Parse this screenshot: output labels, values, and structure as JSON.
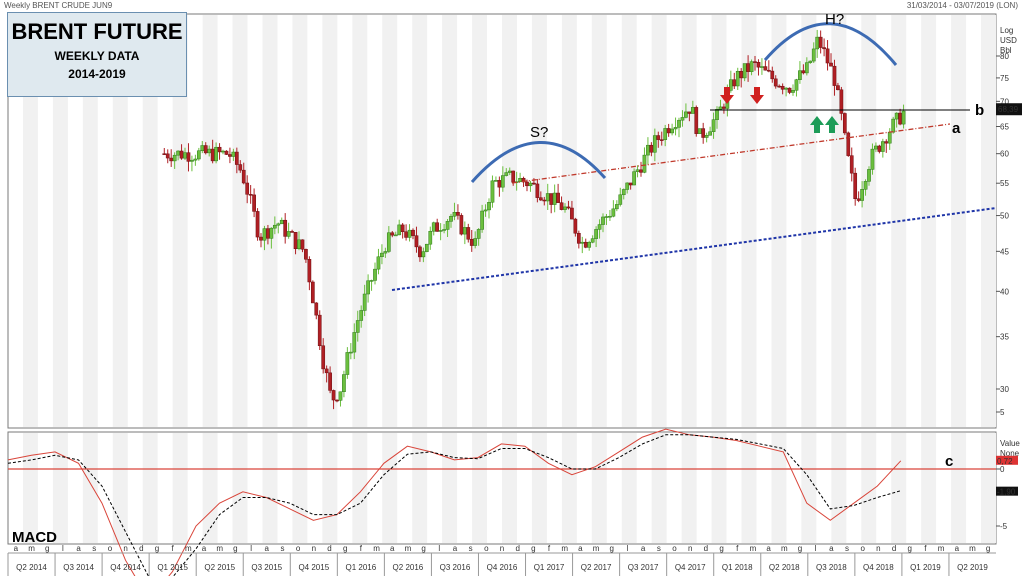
{
  "header": {
    "instrument": "Weekly BRENT CRUDE JUN9",
    "range": "31/03/2014 - 03/07/2019 (LON)"
  },
  "title_box": {
    "title": "BRENT FUTURE",
    "subtitle": "WEEKLY DATA",
    "period": "2014-2019"
  },
  "chart_data": [
    {
      "type": "candlestick",
      "title": "BRENT FUTURE",
      "subtitle": "WEEKLY DATA",
      "axis_header": [
        "Log",
        "USD",
        "Bbl"
      ],
      "yscale": "log",
      "ylim": [
        26,
        88
      ],
      "yticks": [
        30,
        35,
        40,
        45,
        50,
        55,
        60,
        65,
        70,
        75,
        80
      ],
      "last_price": 68.39,
      "last_price_label": "68,39",
      "months": [
        "a",
        "m",
        "g",
        "l",
        "a",
        "s",
        "o",
        "n",
        "d",
        "g",
        "f",
        "m",
        "a",
        "m",
        "g",
        "l",
        "a",
        "s",
        "o",
        "n",
        "d",
        "g",
        "f",
        "m",
        "a",
        "m",
        "g",
        "l",
        "a",
        "s",
        "o",
        "n",
        "d",
        "g",
        "f",
        "m",
        "a",
        "m",
        "g",
        "l",
        "a",
        "s",
        "o",
        "n",
        "d",
        "g",
        "f",
        "m",
        "a",
        "m",
        "g",
        "l",
        "a",
        "s",
        "o",
        "n",
        "d",
        "g",
        "f",
        "m",
        "a",
        "m",
        "g"
      ],
      "quarters": [
        "Q2 2014",
        "Q3 2014",
        "Q4 2014",
        "Q1 2015",
        "Q2 2015",
        "Q3 2015",
        "Q4 2015",
        "Q1 2016",
        "Q2 2016",
        "Q3 2016",
        "Q4 2016",
        "Q1 2017",
        "Q2 2017",
        "Q3 2017",
        "Q4 2017",
        "Q1 2018",
        "Q2 2018",
        "Q3 2018",
        "Q4 2018",
        "Q1 2019",
        "Q2 2019"
      ],
      "price_path": [
        {
          "t": 2015.48,
          "v": 60
        },
        {
          "t": 2015.55,
          "v": 57
        },
        {
          "t": 2015.65,
          "v": 47
        },
        {
          "t": 2015.75,
          "v": 49
        },
        {
          "t": 2015.9,
          "v": 45
        },
        {
          "t": 2016.0,
          "v": 33
        },
        {
          "t": 2016.05,
          "v": 29
        },
        {
          "t": 2016.1,
          "v": 30
        },
        {
          "t": 2016.2,
          "v": 37
        },
        {
          "t": 2016.35,
          "v": 46
        },
        {
          "t": 2016.45,
          "v": 48
        },
        {
          "t": 2016.55,
          "v": 45
        },
        {
          "t": 2016.62,
          "v": 48
        },
        {
          "t": 2016.72,
          "v": 50
        },
        {
          "t": 2016.85,
          "v": 46
        },
        {
          "t": 2016.95,
          "v": 55
        },
        {
          "t": 2017.05,
          "v": 56
        },
        {
          "t": 2017.15,
          "v": 55
        },
        {
          "t": 2017.25,
          "v": 53
        },
        {
          "t": 2017.35,
          "v": 51
        },
        {
          "t": 2017.45,
          "v": 46
        },
        {
          "t": 2017.55,
          "v": 49
        },
        {
          "t": 2017.65,
          "v": 52
        },
        {
          "t": 2017.75,
          "v": 57
        },
        {
          "t": 2017.85,
          "v": 62
        },
        {
          "t": 2017.95,
          "v": 66
        },
        {
          "t": 2018.05,
          "v": 69
        },
        {
          "t": 2018.1,
          "v": 63
        },
        {
          "t": 2018.2,
          "v": 67
        },
        {
          "t": 2018.3,
          "v": 75
        },
        {
          "t": 2018.4,
          "v": 78
        },
        {
          "t": 2018.5,
          "v": 75
        },
        {
          "t": 2018.6,
          "v": 73
        },
        {
          "t": 2018.7,
          "v": 77
        },
        {
          "t": 2018.76,
          "v": 84
        },
        {
          "t": 2018.85,
          "v": 75
        },
        {
          "t": 2018.92,
          "v": 60
        },
        {
          "t": 2018.97,
          "v": 52
        },
        {
          "t": 2019.05,
          "v": 59
        },
        {
          "t": 2019.15,
          "v": 64
        },
        {
          "t": 2019.25,
          "v": 68.39
        }
      ],
      "annotations": [
        {
          "text": "S?"
        },
        {
          "text": "H?"
        },
        {
          "text": "a"
        },
        {
          "text": "b"
        }
      ]
    },
    {
      "type": "line",
      "title": "MACD",
      "axis_header": [
        "Value",
        "None"
      ],
      "yticks": [
        -10,
        -5,
        0,
        5
      ],
      "ytick_labels": [
        "-10",
        "-5",
        "0",
        "5"
      ],
      "values_shown": [
        "0,72",
        "-1,90"
      ],
      "annotation": "c",
      "series": [
        {
          "values": [
            0.8,
            1.2,
            1.5,
            0.5,
            -3,
            -8,
            -11.5,
            -9,
            -5,
            -3,
            -2,
            -2.5,
            -3.5,
            -4.5,
            -4,
            -2,
            0.5,
            2,
            1.5,
            0.8,
            1,
            2.2,
            2,
            0.5,
            -0.5,
            0.2,
            1.5,
            2.8,
            3.5,
            3,
            2.8,
            2.5,
            2,
            1.5,
            -3,
            -4.5,
            -3,
            -1.5,
            0.72
          ]
        },
        {
          "values": [
            0.5,
            0.8,
            1.2,
            0.8,
            -1.5,
            -5.5,
            -9.5,
            -9.5,
            -7,
            -4,
            -2.5,
            -2.5,
            -3,
            -4,
            -4,
            -3,
            -0.5,
            1.3,
            1.5,
            1,
            0.9,
            1.8,
            1.8,
            1,
            0,
            0,
            1,
            2.2,
            3,
            3,
            2.8,
            2.6,
            2.2,
            1.8,
            -0.5,
            -3.5,
            -3.2,
            -2.5,
            -1.9
          ]
        }
      ]
    }
  ],
  "colors": {
    "up_candle": "#6bbf3e",
    "down_candle": "#b01f24",
    "resistance_line": "#c0392b",
    "support_line": "#1f35a8",
    "arc": "#3d6bb3",
    "arrow_red": "#d0201f",
    "arrow_green": "#1d9c58",
    "macd": "#d9453a",
    "signal": "#000000"
  }
}
